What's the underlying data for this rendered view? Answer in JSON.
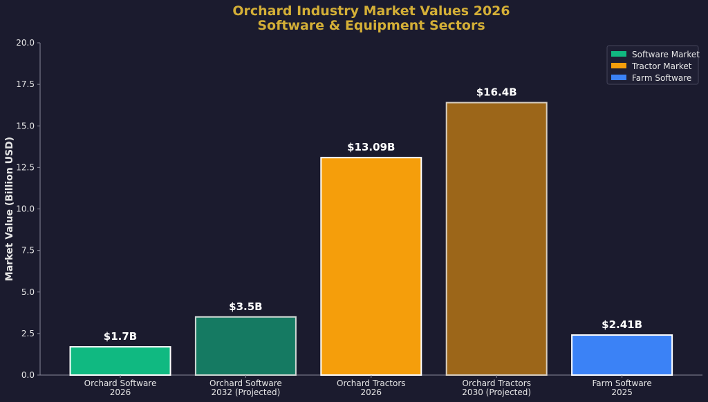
{
  "colors": {
    "background": "#1b1b2e",
    "title": "#d4af37",
    "axis": "#8a8a9a",
    "text": "#e6e6e6",
    "value_label": "#ffffff",
    "legend_bg": "#1f1f33",
    "legend_border": "#44445a"
  },
  "chart_data": {
    "type": "bar",
    "title_lines": [
      "Orchard Industry Market Values 2026",
      "Software & Equipment Sectors"
    ],
    "xlabel": "",
    "ylabel": "Market Value (Billion USD)",
    "ylim": [
      0,
      20
    ],
    "yticks": [
      0,
      2.5,
      5,
      7.5,
      10,
      12.5,
      15,
      17.5,
      20
    ],
    "ytick_labels": [
      "0.0",
      "2.5",
      "5.0",
      "7.5",
      "10.0",
      "12.5",
      "15.0",
      "17.5",
      "20.0"
    ],
    "grid": false,
    "legend_position": "top-right",
    "bars": [
      {
        "category_lines": [
          "Orchard Software",
          "2026"
        ],
        "value": 1.7,
        "label": "$1.7B",
        "color": "#10b981",
        "edge": "#ffffff"
      },
      {
        "category_lines": [
          "Orchard Software",
          "2032 (Projected)"
        ],
        "value": 3.5,
        "label": "$3.5B",
        "color": "#157a62",
        "edge": "#cfd8d4"
      },
      {
        "category_lines": [
          "Orchard Tractors",
          "2026"
        ],
        "value": 13.09,
        "label": "$13.09B",
        "color": "#f59e0b",
        "edge": "#ffffff"
      },
      {
        "category_lines": [
          "Orchard Tractors",
          "2030 (Projected)"
        ],
        "value": 16.4,
        "label": "$16.4B",
        "color": "#9c6619",
        "edge": "#d9cfc0"
      },
      {
        "category_lines": [
          "Farm Software",
          "2025"
        ],
        "value": 2.41,
        "label": "$2.41B",
        "color": "#3b82f6",
        "edge": "#ffffff"
      }
    ],
    "legend": [
      {
        "name": "Software Market",
        "color": "#10b981"
      },
      {
        "name": "Tractor Market",
        "color": "#f59e0b"
      },
      {
        "name": "Farm Software",
        "color": "#3b82f6"
      }
    ]
  }
}
